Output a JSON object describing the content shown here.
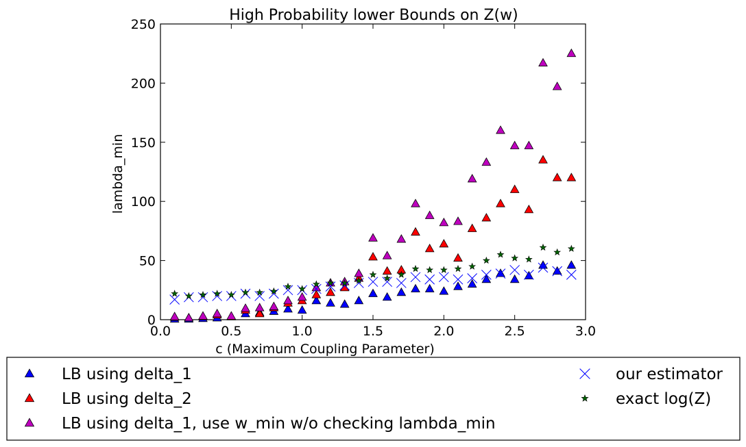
{
  "chart_data": {
    "type": "scatter",
    "title": "High Probability lower Bounds on Z(w)",
    "xlabel": "c (Maximum Coupling Parameter)",
    "ylabel": "lambda_min",
    "xlim": [
      0.0,
      3.0
    ],
    "ylim": [
      0,
      250
    ],
    "xticks": [
      "0.0",
      "0.5",
      "1.0",
      "1.5",
      "2.0",
      "2.5",
      "3.0"
    ],
    "yticks": [
      "0",
      "50",
      "100",
      "150",
      "200",
      "250"
    ],
    "grid": false,
    "legend_placement": "below-plot",
    "x": [
      0.1,
      0.2,
      0.3,
      0.4,
      0.5,
      0.6,
      0.7,
      0.8,
      0.9,
      1.0,
      1.1,
      1.2,
      1.3,
      1.4,
      1.5,
      1.6,
      1.7,
      1.8,
      1.9,
      2.0,
      2.1,
      2.2,
      2.3,
      2.4,
      2.5,
      2.6,
      2.7,
      2.8,
      2.9
    ],
    "series": [
      {
        "name": "LB using delta_1",
        "marker": "triangle",
        "color": "#0000ff",
        "values": [
          0.5,
          0.5,
          1,
          1.5,
          2.5,
          5,
          6,
          7,
          9,
          8,
          16,
          14,
          13,
          16,
          22,
          19,
          23,
          26,
          26,
          24,
          28,
          30,
          34,
          39,
          34,
          37,
          46,
          41,
          46
        ]
      },
      {
        "name": "LB using delta_2",
        "marker": "triangle",
        "color": "#ff0000",
        "values": [
          2,
          1.5,
          2.5,
          4,
          2.5,
          8,
          5,
          10,
          14,
          16,
          21,
          23,
          27,
          35,
          53,
          41,
          42,
          74,
          60,
          64,
          52,
          77,
          86,
          98,
          110,
          93,
          135,
          120,
          120
        ]
      },
      {
        "name": "LB using delta_1, use w_min w/o checking lambda_min",
        "marker": "triangle",
        "color": "#bf00bf",
        "values": [
          2.5,
          1.5,
          3,
          5,
          3,
          9.5,
          10,
          11,
          16,
          19,
          27,
          31,
          32,
          39,
          69,
          54,
          68,
          98,
          88,
          82,
          83,
          119,
          133,
          160,
          147,
          147,
          217,
          197,
          225
        ]
      },
      {
        "name": "our estimator",
        "marker": "x",
        "color": "#0000ff",
        "values": [
          17,
          19,
          19,
          20,
          20,
          22,
          20,
          22,
          25,
          25,
          26,
          28,
          29,
          31,
          32,
          32,
          31,
          36,
          34,
          36,
          34,
          35,
          38,
          39,
          42,
          38,
          44,
          41,
          38
        ]
      },
      {
        "name": "exact log(Z)",
        "marker": "star",
        "color": "#006400",
        "values": [
          22,
          20,
          21,
          22,
          21,
          23,
          23,
          24,
          28,
          26,
          30,
          31,
          31,
          33,
          38,
          35,
          38,
          43,
          42,
          42,
          43,
          45,
          50,
          55,
          52,
          51,
          61,
          57,
          60
        ]
      }
    ]
  }
}
